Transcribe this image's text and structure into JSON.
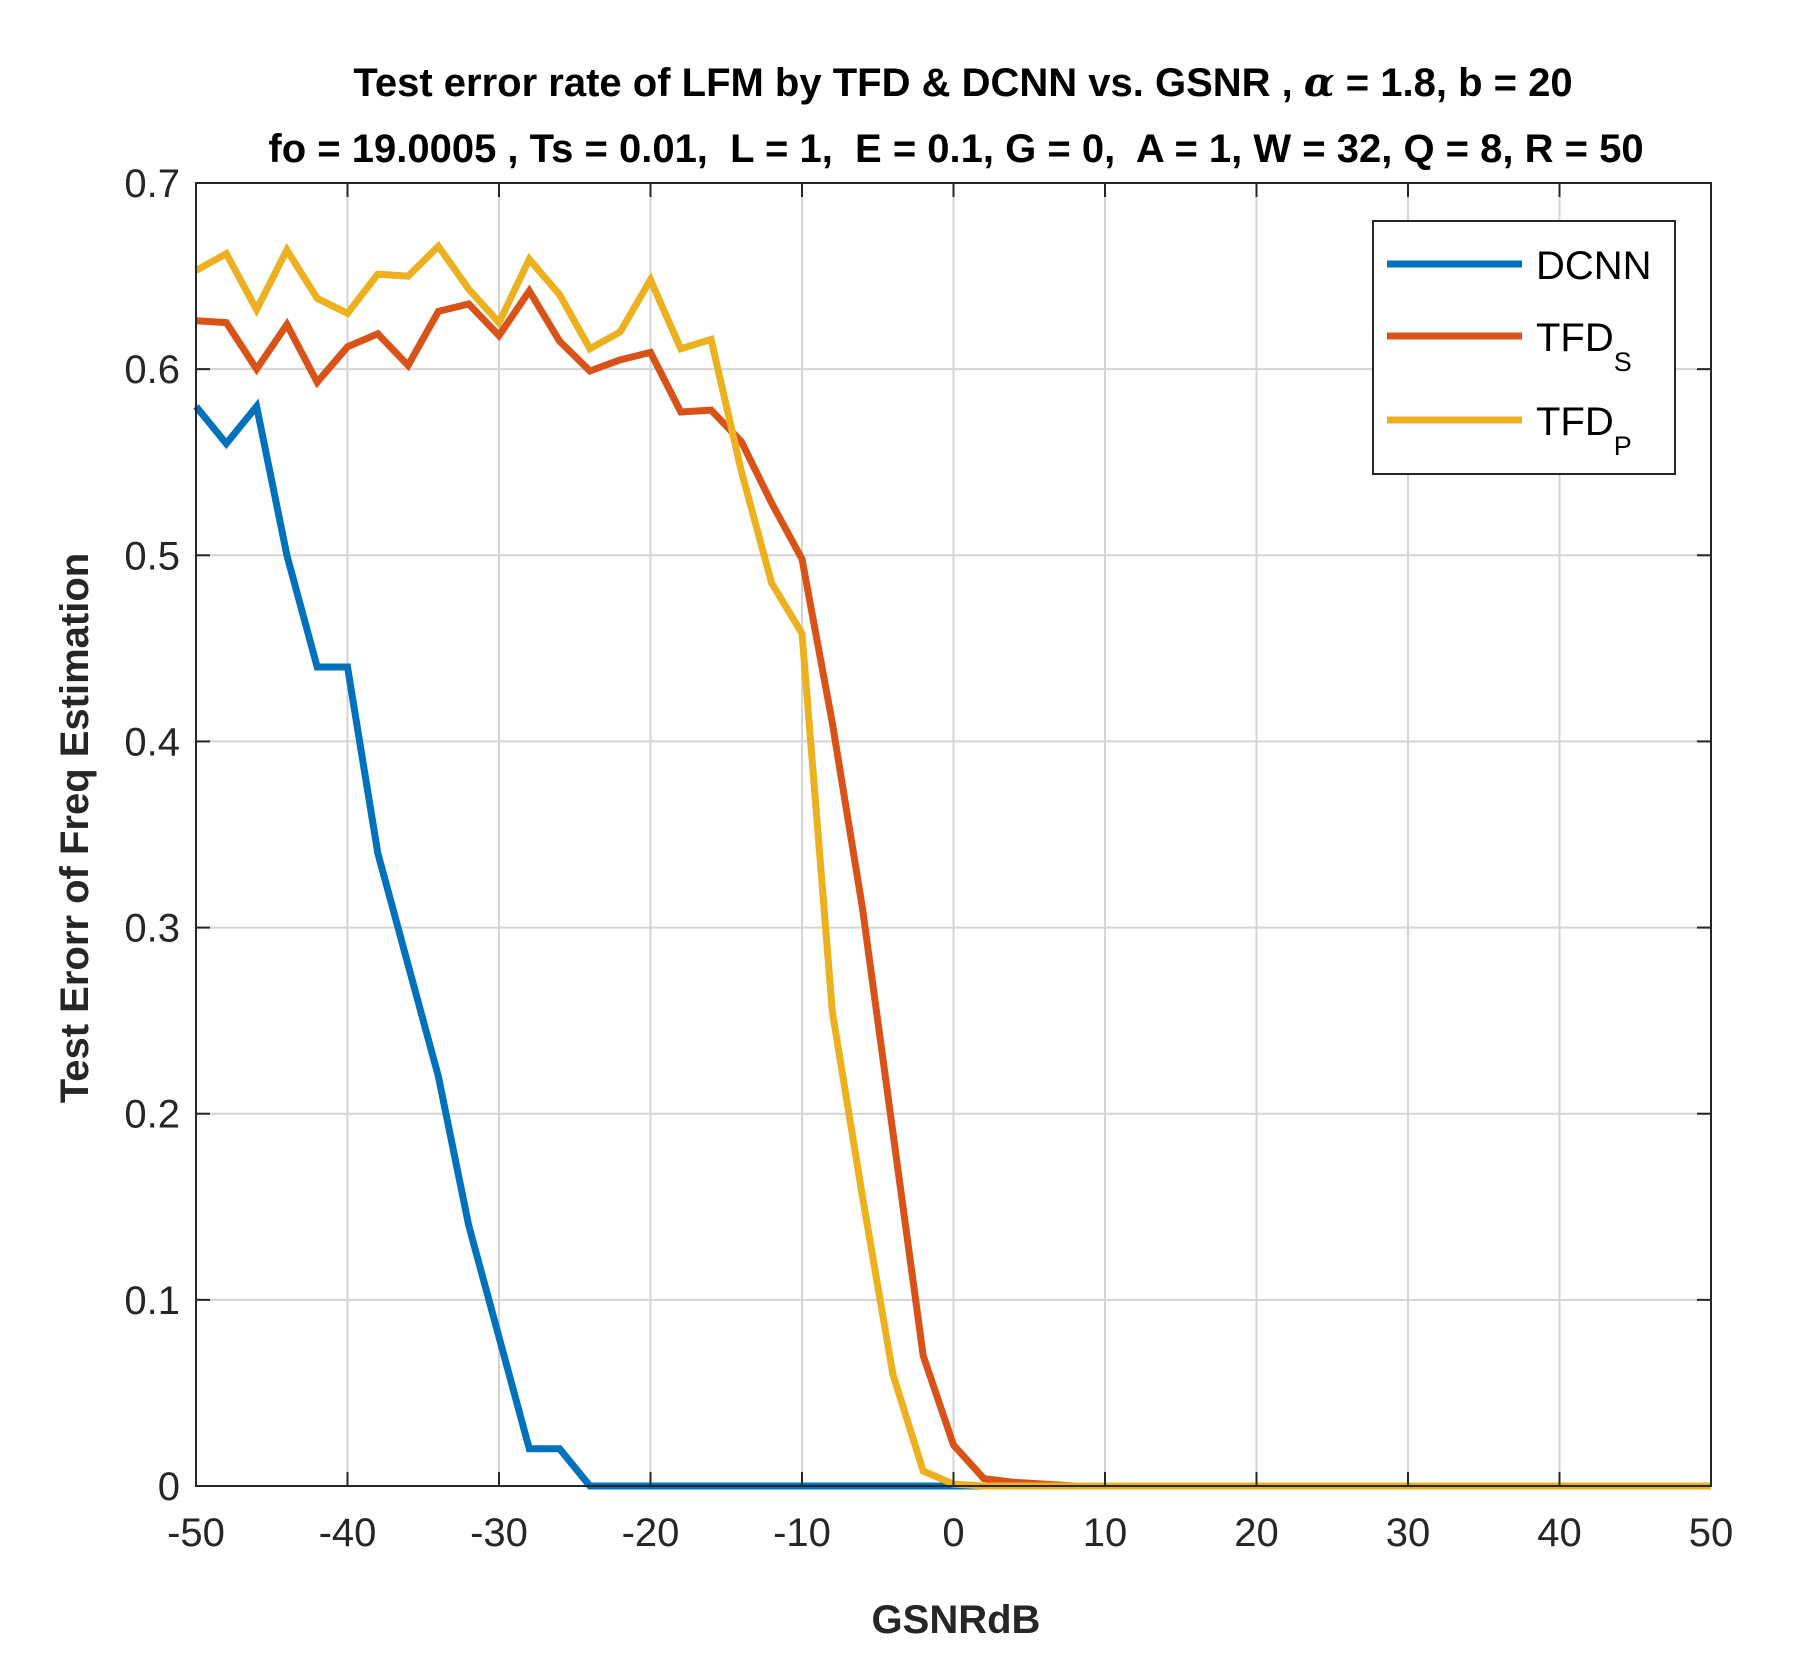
{
  "chart_data": {
    "type": "line",
    "title_line1": "Test error rate of LFM by TFD & DCNN vs. GSNR ,  ",
    "title_alpha_symbol": "α",
    "title_line1_tail": " = 1.8, b = 20",
    "title_line2": "fo = 19.0005 , Ts = 0.01,  L = 1,  E = 0.1, G = 0,  A = 1, W = 32, Q = 8, R = 50",
    "xlabel": "GSNRdB",
    "ylabel": "Test Erorr of Freq Estimation",
    "xlim": [
      -50,
      50
    ],
    "ylim": [
      0,
      0.7
    ],
    "xticks": [
      -50,
      -40,
      -30,
      -20,
      -10,
      0,
      10,
      20,
      30,
      40,
      50
    ],
    "xtick_labels": [
      "-50",
      "-40",
      "-30",
      "-20",
      "-10",
      "0",
      "10",
      "20",
      "30",
      "40",
      "50"
    ],
    "yticks": [
      0,
      0.1,
      0.2,
      0.3,
      0.4,
      0.5,
      0.6,
      0.7
    ],
    "ytick_labels": [
      "0",
      "0.1",
      "0.2",
      "0.3",
      "0.4",
      "0.5",
      "0.6",
      "0.7"
    ],
    "grid": true,
    "legend_position": "top-right",
    "x": [
      -50,
      -48,
      -46,
      -44,
      -42,
      -40,
      -38,
      -36,
      -34,
      -32,
      -30,
      -28,
      -26,
      -24,
      -22,
      -20,
      -18,
      -16,
      -14,
      -12,
      -10,
      -8,
      -6,
      -4,
      -2,
      0,
      2,
      4,
      6,
      8,
      10,
      12,
      14,
      16,
      18,
      20,
      22,
      24,
      26,
      28,
      30,
      32,
      34,
      36,
      38,
      40,
      42,
      44,
      46,
      48,
      50
    ],
    "series": [
      {
        "name": "DCNN",
        "label_main": "DCNN",
        "label_sub": "",
        "color": "#0072BD",
        "values": [
          0.58,
          0.56,
          0.58,
          0.5,
          0.44,
          0.44,
          0.34,
          0.28,
          0.22,
          0.14,
          0.08,
          0.02,
          0.02,
          0,
          0,
          0,
          0,
          0,
          0,
          0,
          0,
          0,
          0,
          0,
          0,
          0,
          0,
          0,
          0,
          0,
          0,
          0,
          0,
          0,
          0,
          0,
          0,
          0,
          0,
          0,
          0,
          0,
          0,
          0,
          0,
          0,
          0,
          0,
          0,
          0,
          0
        ]
      },
      {
        "name": "TFD_S",
        "label_main": "TFD",
        "label_sub": "S",
        "color": "#D95319",
        "values": [
          0.626,
          0.625,
          0.6,
          0.624,
          0.593,
          0.612,
          0.619,
          0.602,
          0.631,
          0.635,
          0.618,
          0.642,
          0.615,
          0.599,
          0.605,
          0.609,
          0.577,
          0.578,
          0.561,
          0.528,
          0.498,
          0.41,
          0.31,
          0.19,
          0.07,
          0.022,
          0.004,
          0.002,
          0.001,
          0,
          0,
          0,
          0,
          0,
          0,
          0,
          0,
          0,
          0,
          0,
          0,
          0,
          0,
          0,
          0,
          0,
          0,
          0,
          0,
          0,
          0
        ]
      },
      {
        "name": "TFD_P",
        "label_main": "TFD",
        "label_sub": "P",
        "color": "#EDB120",
        "values": [
          0.653,
          0.662,
          0.632,
          0.664,
          0.638,
          0.63,
          0.651,
          0.65,
          0.666,
          0.643,
          0.625,
          0.659,
          0.64,
          0.611,
          0.62,
          0.648,
          0.611,
          0.616,
          0.545,
          0.485,
          0.458,
          0.255,
          0.155,
          0.06,
          0.008,
          0.001,
          0,
          0,
          0,
          0,
          0,
          0,
          0,
          0,
          0,
          0,
          0,
          0,
          0,
          0,
          0,
          0,
          0,
          0,
          0,
          0,
          0,
          0,
          0,
          0,
          0
        ]
      }
    ]
  }
}
